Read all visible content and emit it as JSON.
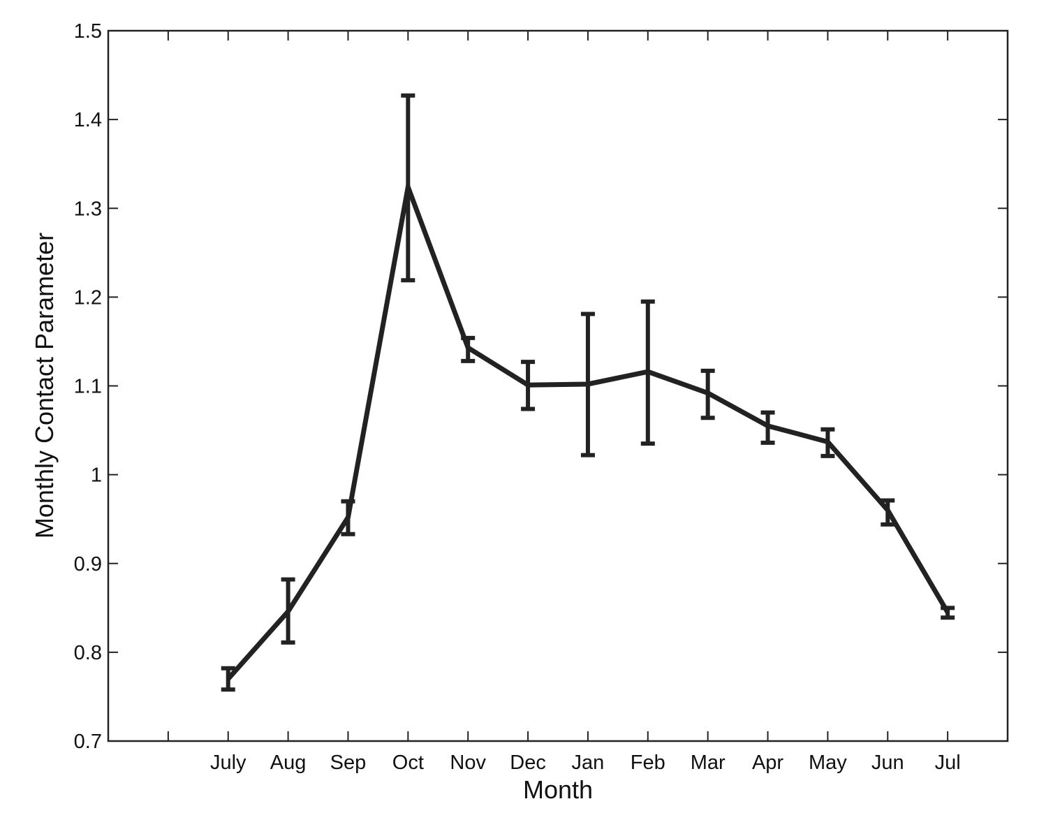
{
  "chart_data": {
    "type": "line",
    "title": "",
    "xlabel": "Month",
    "ylabel": "Monthly Contact Parameter",
    "categories": [
      "July",
      "Aug",
      "Sep",
      "Oct",
      "Nov",
      "Dec",
      "Jan",
      "Feb",
      "Mar",
      "Apr",
      "May",
      "Jun",
      "Jul"
    ],
    "series": [
      {
        "name": "Monthly Contact Parameter",
        "values": [
          0.77,
          0.846,
          0.952,
          1.324,
          1.143,
          1.101,
          1.102,
          1.116,
          1.092,
          1.055,
          1.037,
          0.96,
          0.845
        ],
        "error_upper": [
          0.782,
          0.882,
          0.97,
          1.427,
          1.154,
          1.127,
          1.181,
          1.195,
          1.117,
          1.07,
          1.051,
          0.971,
          0.85
        ],
        "error_lower": [
          0.758,
          0.811,
          0.933,
          1.219,
          1.128,
          1.074,
          1.022,
          1.035,
          1.064,
          1.036,
          1.021,
          0.944,
          0.839
        ],
        "color": "#222222"
      }
    ],
    "ylim": [
      0.7,
      1.5
    ],
    "yticks": [
      "0.7",
      "0.8",
      "0.9",
      "1",
      "1.1",
      "1.2",
      "1.3",
      "1.4",
      "1.5"
    ],
    "grid": false,
    "legend": "none"
  }
}
